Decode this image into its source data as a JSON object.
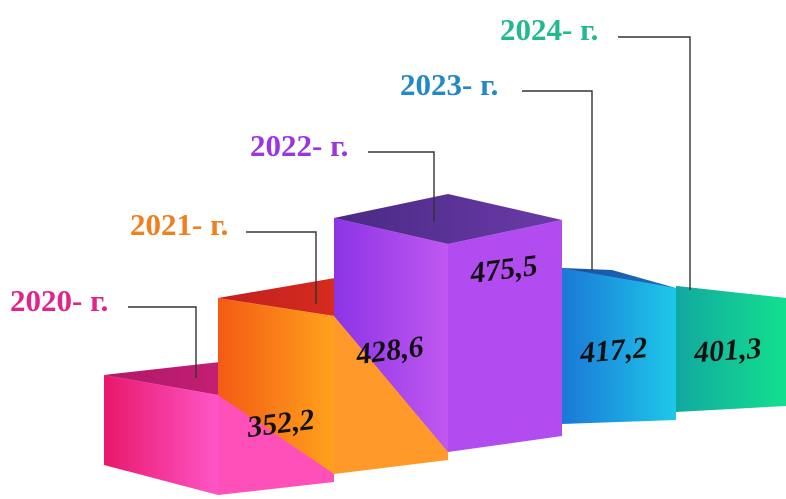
{
  "chart_data": {
    "type": "bar",
    "style": "3d-steps",
    "categories": [
      "2020- г.",
      "2021- г.",
      "2022- г.",
      "2023- г.",
      "2024- г."
    ],
    "values": [
      "352,2",
      "428,6",
      "475,5",
      "417,2",
      "401,3"
    ],
    "numeric_values": [
      352.2,
      428.6,
      475.5,
      417.2,
      401.3
    ],
    "colors": [
      "#ec1f7a",
      "#f47a16",
      "#9b3ae6",
      "#1f8fd8",
      "#19c49c"
    ],
    "grid": false,
    "legend": "none"
  }
}
